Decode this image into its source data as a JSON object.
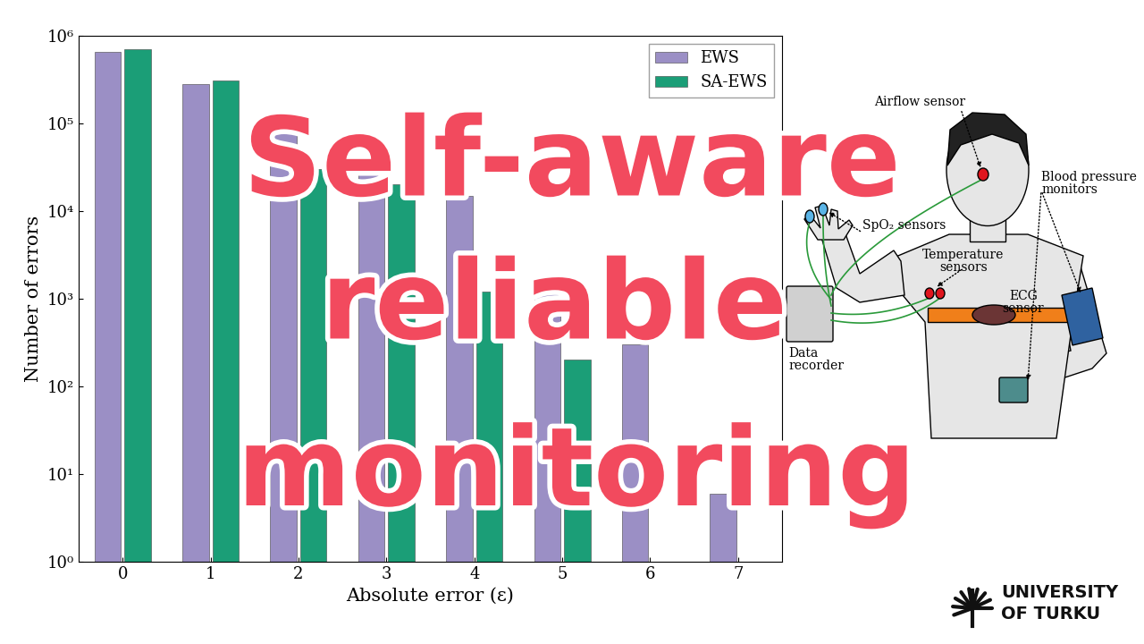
{
  "chart_data": {
    "type": "bar",
    "x_label": "Absolute error (ε)",
    "y_label": "Number of errors",
    "categories": [
      "0",
      "1",
      "2",
      "3",
      "4",
      "5",
      "6",
      "7"
    ],
    "series": [
      {
        "name": "EWS",
        "color": "#9b8fc5",
        "values": [
          650000,
          280000,
          90000,
          40000,
          15000,
          1800,
          300,
          6
        ]
      },
      {
        "name": "SA-EWS",
        "color": "#1b9e77",
        "values": [
          700000,
          310000,
          30000,
          20000,
          1200,
          200,
          null,
          null
        ]
      }
    ],
    "log": "y",
    "ylim": [
      1,
      1000000
    ],
    "yticks": [
      {
        "value": 1,
        "label": "10⁰"
      },
      {
        "value": 10,
        "label": "10¹"
      },
      {
        "value": 100,
        "label": "10²"
      },
      {
        "value": 1000,
        "label": "10³"
      },
      {
        "value": 10000,
        "label": "10⁴"
      },
      {
        "value": 100000,
        "label": "10⁵"
      },
      {
        "value": 1000000,
        "label": "10⁶"
      }
    ],
    "legend": "upper right",
    "grid": false
  },
  "overlay_text": [
    "Self-aware",
    "reliable",
    "monitoring"
  ],
  "diagram": {
    "labels": [
      "Airflow sensor",
      "SpO₂ sensors",
      "Temperature\nsensors",
      "ECG\nsensor",
      "Blood pressure\nmonitors",
      "Data\nrecorder"
    ]
  },
  "logo": [
    "UNIVERSITY",
    "OF TURKU"
  ]
}
